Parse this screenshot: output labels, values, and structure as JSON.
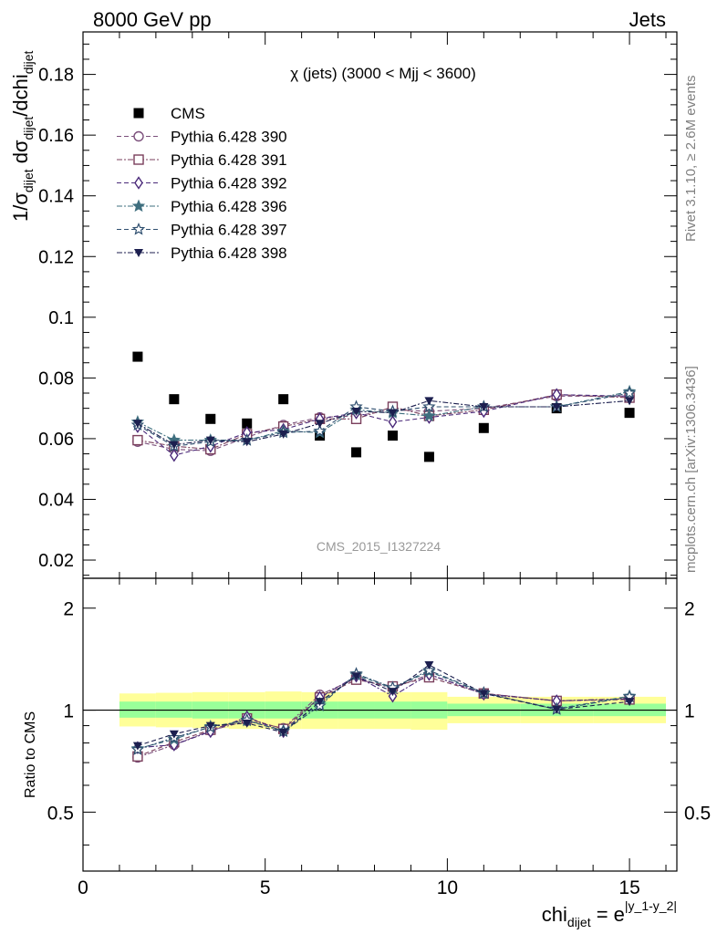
{
  "header": {
    "left_text": "8000 GeV pp",
    "right_text": "Jets"
  },
  "side": {
    "rivet": "Rivet 3.1.10, ≥ 2.6M events",
    "mcplots": "mcplots.cern.ch [arXiv:1306.3436]"
  },
  "colors": {
    "cms": "#000000",
    "p390": "#7b4f7b",
    "p391": "#7a3f5c",
    "p392": "#4b2a7a",
    "p396": "#3f6f7f",
    "p397": "#2f4f6f",
    "p398": "#1c1f4f",
    "band_inner": "#99ff99",
    "band_outer": "#ffff99"
  },
  "chart_data": [
    {
      "type": "scatter",
      "title": "χ (jets) (3000 < Mjj < 3600)",
      "watermark": "CMS_2015_I1327224",
      "ylabel_parts": {
        "a": "1/σ",
        "a_sub": "dijet",
        "b": " dσ",
        "b_sub": "dijet",
        "c": "/dchi",
        "c_sub": "dijet"
      },
      "xlim": [
        0,
        16.3
      ],
      "ylim": [
        0.014,
        0.194
      ],
      "yticks": [
        0.02,
        0.04,
        0.06,
        0.08,
        0.1,
        0.12,
        0.14,
        0.16,
        0.18
      ],
      "ytick_labels": [
        "0.02",
        "0.04",
        "0.06",
        "0.08",
        "0.1",
        "0.12",
        "0.14",
        "0.16",
        "0.18"
      ],
      "x": [
        1.5,
        2.5,
        3.5,
        4.5,
        5.5,
        6.5,
        7.5,
        8.5,
        9.5,
        11,
        13,
        15
      ],
      "legend": "top-left",
      "series": [
        {
          "name": "CMS",
          "key": "cms",
          "marker": "square-filled",
          "values": [
            0.087,
            0.073,
            0.0665,
            0.065,
            0.073,
            0.061,
            0.0555,
            0.061,
            0.054,
            0.0635,
            0.07,
            0.0685
          ]
        },
        {
          "name": "Pythia 6.428 390",
          "key": "p390",
          "marker": "circle-open",
          "values": [
            0.059,
            0.0565,
            0.056,
            0.0605,
            0.0645,
            0.067,
            0.0675,
            0.0695,
            0.069,
            0.07,
            0.074,
            0.074
          ]
        },
        {
          "name": "Pythia 6.428 391",
          "key": "p391",
          "marker": "square-open",
          "values": [
            0.0595,
            0.0575,
            0.0565,
            0.0615,
            0.064,
            0.0665,
            0.0665,
            0.0705,
            0.0675,
            0.0695,
            0.0745,
            0.0735
          ]
        },
        {
          "name": "Pythia 6.428 392",
          "key": "p392",
          "marker": "diamond-open",
          "values": [
            0.064,
            0.0545,
            0.0575,
            0.062,
            0.063,
            0.0665,
            0.0685,
            0.0655,
            0.067,
            0.069,
            0.0745,
            0.074
          ]
        },
        {
          "name": "Pythia 6.428 396",
          "key": "p396",
          "marker": "star-filled",
          "values": [
            0.0655,
            0.0595,
            0.0595,
            0.0595,
            0.0625,
            0.062,
            0.0695,
            0.0685,
            0.0675,
            0.0705,
            0.0705,
            0.0755
          ]
        },
        {
          "name": "Pythia 6.428 397",
          "key": "p397",
          "marker": "star-open",
          "values": [
            0.0645,
            0.0575,
            0.059,
            0.0595,
            0.062,
            0.0625,
            0.0705,
            0.069,
            0.0705,
            0.0705,
            0.0705,
            0.075
          ]
        },
        {
          "name": "Pythia 6.428 398",
          "key": "p398",
          "marker": "triangle-down-filled",
          "values": [
            0.065,
            0.058,
            0.0595,
            0.059,
            0.0615,
            0.065,
            0.069,
            0.0685,
            0.0725,
            0.0705,
            0.0705,
            0.0725
          ]
        }
      ]
    },
    {
      "type": "line",
      "ylabel": "Ratio to CMS",
      "xlabel": "chi_dijet = e^|y_1-y_2|",
      "xlabel_parts": {
        "a": "chi",
        "a_sub": "dijet",
        "b": " = e",
        "b_sup": "|y_1-y_2|"
      },
      "xlim": [
        0,
        16.3
      ],
      "ylim": [
        0.335,
        2.45
      ],
      "log_scale_y": true,
      "xticks": [
        0,
        5,
        10,
        15
      ],
      "xtick_labels": [
        "0",
        "5",
        "10",
        "15"
      ],
      "yticks": [
        0.5,
        1,
        2
      ],
      "ytick_labels": [
        "0.5",
        "1",
        "2"
      ],
      "bins": [
        [
          1,
          2
        ],
        [
          2,
          3
        ],
        [
          3,
          4
        ],
        [
          4,
          5
        ],
        [
          5,
          6
        ],
        [
          6,
          7
        ],
        [
          7,
          8
        ],
        [
          8,
          9
        ],
        [
          9,
          10
        ],
        [
          10,
          12
        ],
        [
          12,
          14
        ],
        [
          14,
          16
        ]
      ],
      "band_inner": [
        [
          0.95,
          1.06
        ],
        [
          0.95,
          1.06
        ],
        [
          0.945,
          1.06
        ],
        [
          0.945,
          1.06
        ],
        [
          0.945,
          1.06
        ],
        [
          0.945,
          1.06
        ],
        [
          0.945,
          1.06
        ],
        [
          0.945,
          1.06
        ],
        [
          0.945,
          1.06
        ],
        [
          0.96,
          1.045
        ],
        [
          0.96,
          1.045
        ],
        [
          0.96,
          1.045
        ]
      ],
      "band_outer": [
        [
          0.895,
          1.12
        ],
        [
          0.89,
          1.125
        ],
        [
          0.885,
          1.13
        ],
        [
          0.88,
          1.13
        ],
        [
          0.88,
          1.135
        ],
        [
          0.88,
          1.13
        ],
        [
          0.88,
          1.13
        ],
        [
          0.88,
          1.13
        ],
        [
          0.875,
          1.13
        ],
        [
          0.915,
          1.095
        ],
        [
          0.915,
          1.095
        ],
        [
          0.915,
          1.095
        ]
      ],
      "x": [
        1.5,
        2.5,
        3.5,
        4.5,
        5.5,
        6.5,
        7.5,
        8.5,
        9.5,
        11,
        13,
        15
      ],
      "series": [
        {
          "name": "Pythia 6.428 390",
          "key": "p390",
          "marker": "circle-open",
          "values": [
            0.725,
            0.79,
            0.87,
            0.93,
            0.885,
            1.11,
            1.24,
            1.16,
            1.275,
            1.12,
            1.065,
            1.08
          ]
        },
        {
          "name": "Pythia 6.428 391",
          "key": "p391",
          "marker": "square-open",
          "values": [
            0.73,
            0.805,
            0.875,
            0.945,
            0.88,
            1.09,
            1.23,
            1.175,
            1.25,
            1.12,
            1.065,
            1.075
          ]
        },
        {
          "name": "Pythia 6.428 392",
          "key": "p392",
          "marker": "diamond-open",
          "values": [
            0.775,
            0.79,
            0.865,
            0.955,
            0.865,
            1.09,
            1.26,
            1.1,
            1.275,
            1.115,
            1.065,
            1.08
          ]
        },
        {
          "name": "Pythia 6.428 396",
          "key": "p396",
          "marker": "star-filled",
          "values": [
            0.77,
            0.82,
            0.895,
            0.93,
            0.87,
            1.045,
            1.27,
            1.16,
            1.3,
            1.12,
            1.01,
            1.1
          ]
        },
        {
          "name": "Pythia 6.428 397",
          "key": "p397",
          "marker": "star-open",
          "values": [
            0.765,
            0.83,
            0.89,
            0.935,
            0.865,
            1.03,
            1.28,
            1.165,
            1.31,
            1.125,
            1.005,
            1.095
          ]
        },
        {
          "name": "Pythia 6.428 398",
          "key": "p398",
          "marker": "triangle-down-filled",
          "values": [
            0.785,
            0.85,
            0.9,
            0.915,
            0.86,
            1.06,
            1.26,
            1.135,
            1.36,
            1.12,
            1.005,
            1.06
          ]
        }
      ]
    }
  ]
}
